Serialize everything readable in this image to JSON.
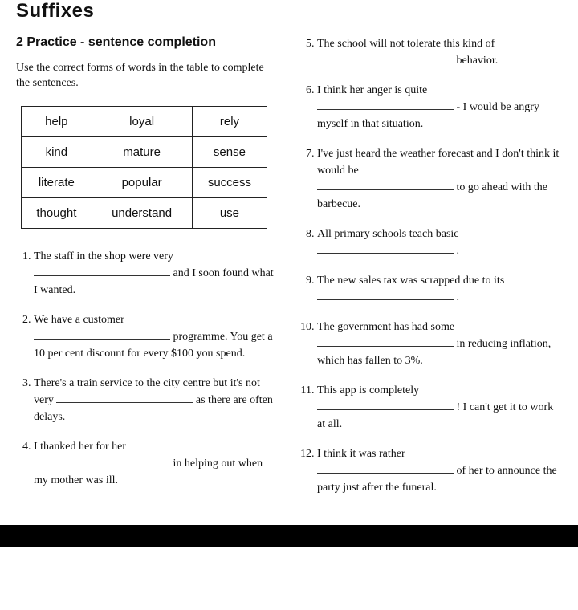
{
  "title": "Suffixes",
  "section_heading": "2  Practice - sentence completion",
  "intro": "Use the correct forms of words in the table to complete the sentences.",
  "table": {
    "rows": [
      [
        "help",
        "loyal",
        "rely"
      ],
      [
        "kind",
        "mature",
        "sense"
      ],
      [
        "literate",
        "popular",
        "success"
      ],
      [
        "thought",
        "understand",
        "use"
      ]
    ]
  },
  "left_start": 1,
  "right_start": 5,
  "s1a": "The staff in the shop were very",
  "s1b": " and I soon found what I wanted.",
  "s2a": "We have a customer",
  "s2b": " programme. You get a 10 per cent discount for every $100 you spend.",
  "s3a": "There's a train service to the city centre but it's not very ",
  "s3b": " as there are often delays.",
  "s4a": "I thanked her for her",
  "s4b": "in helping out when my mother was ill.",
  "s5a": "The school will not tolerate this kind of",
  "s5b": " behavior.",
  "s6a": "I think her anger is quite",
  "s6b": " - I would be angry myself in that situation.",
  "s7a": "I've just heard the weather forecast and I don't think it would be",
  "s7b": " to go ahead with the barbecue.",
  "s8a": "All primary schools teach basic",
  "s8b": ".",
  "s9a": "The new sales tax was scrapped due to its",
  "s9b": ".",
  "s10a": "The government has had some",
  "s10b": " in reducing inflation, which has fallen to 3%.",
  "s11a": "This app is completely",
  "s11b": "! I can't get it to work at all.",
  "s12a": "I think it was rather",
  "s12b": " of her to announce the party just after the funeral."
}
